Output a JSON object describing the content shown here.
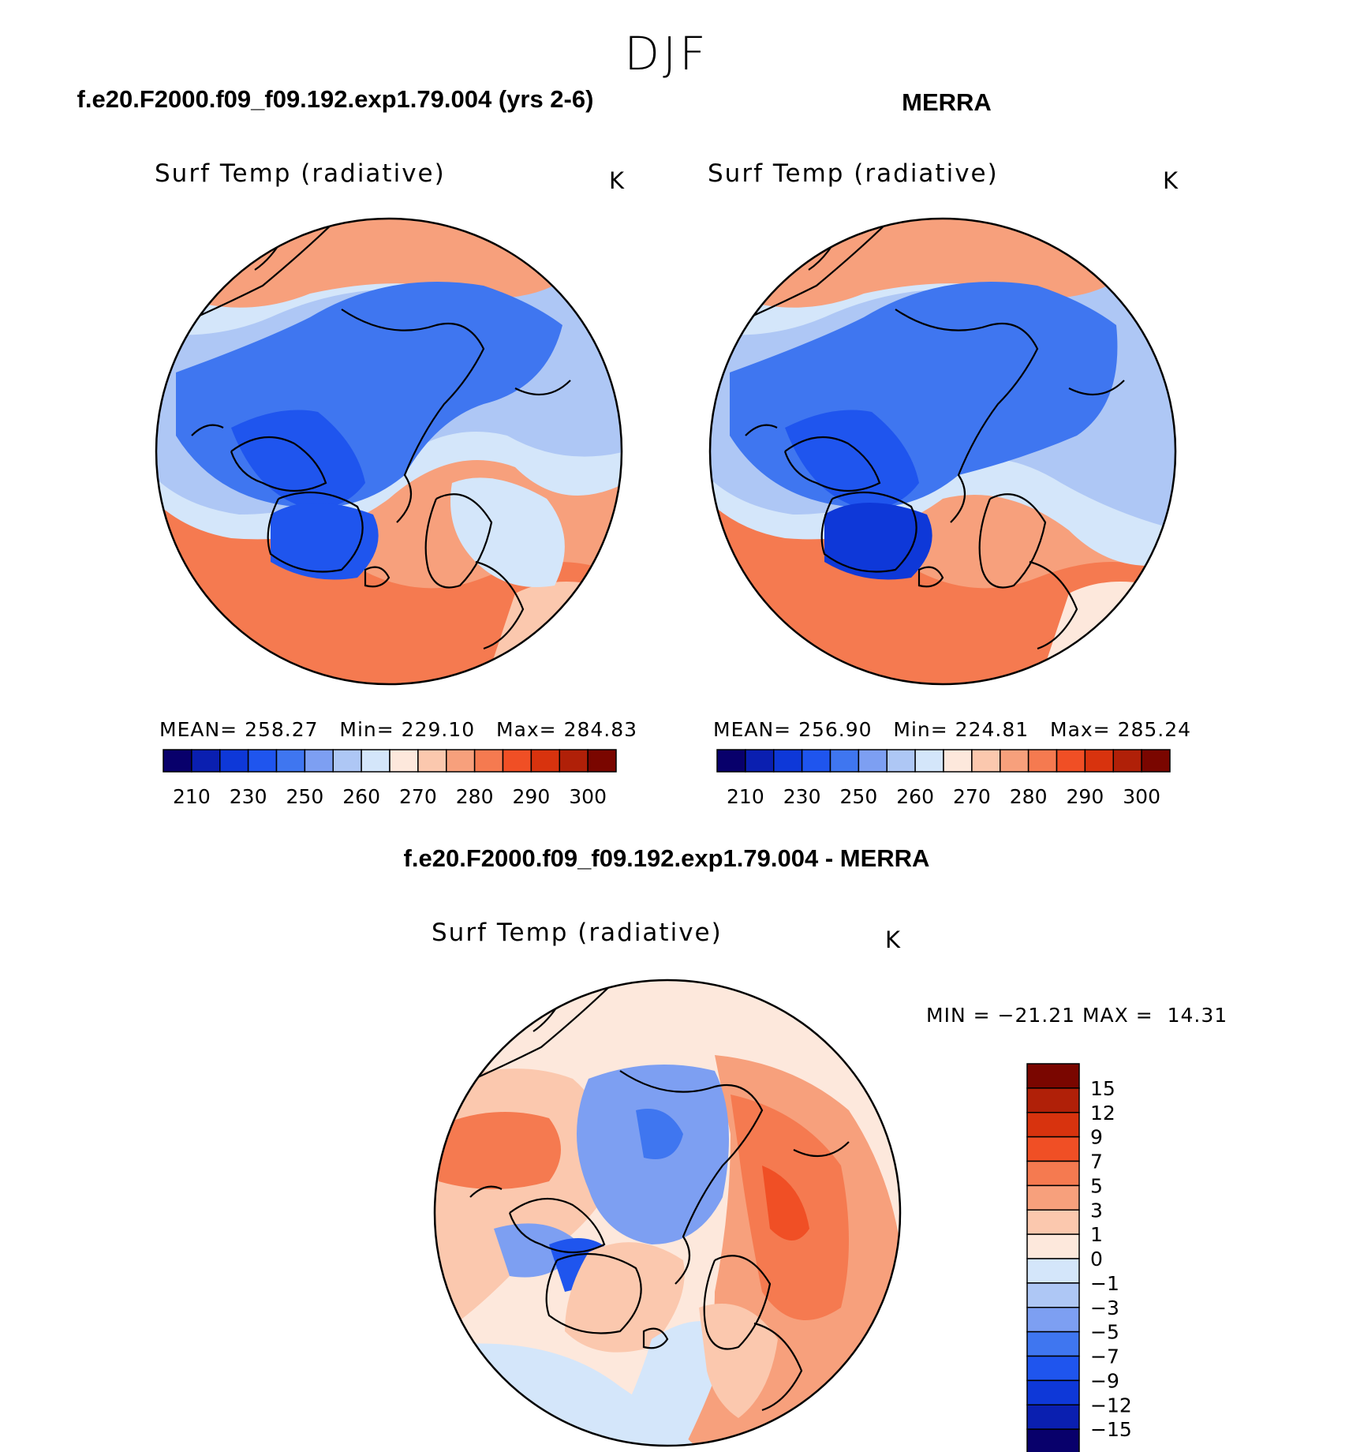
{
  "figure": {
    "season": "DJF"
  },
  "panels": {
    "model": {
      "title": "f.e20.F2000.f09_f09.192.exp1.79.004 (yrs 2-6)",
      "variable": "Surf Temp (radiative)",
      "units": "K",
      "mean_label": "MEAN=",
      "mean_value": "258.27",
      "min_label": "Min=",
      "min_value": "229.10",
      "max_label": "Max=",
      "max_value": "284.83"
    },
    "obs": {
      "title": "MERRA",
      "variable": "Surf Temp (radiative)",
      "units": "K",
      "mean_label": "MEAN=",
      "mean_value": "256.90",
      "min_label": "Min=",
      "min_value": "224.81",
      "max_label": "Max=",
      "max_value": "285.24"
    },
    "diff": {
      "title": "f.e20.F2000.f09_f09.192.exp1.79.004 - MERRA",
      "variable": "Surf Temp (radiative)",
      "units": "K",
      "min_label": "MIN =",
      "min_value": "−21.21",
      "max_label": "MAX =",
      "max_value": "14.31"
    }
  },
  "colorbars": {
    "absolute": {
      "colors": [
        "#08006b",
        "#0a1fb0",
        "#0e38d8",
        "#1f55ee",
        "#3f76f0",
        "#7d9ff2",
        "#aec7f5",
        "#d4e6fa",
        "#fde8dc",
        "#fbc8ae",
        "#f7a07c",
        "#f57a50",
        "#f04f25",
        "#d8330e",
        "#b02008",
        "#7a0600"
      ],
      "ticks": [
        "210",
        "230",
        "250",
        "260",
        "270",
        "280",
        "290",
        "300"
      ]
    },
    "difference": {
      "colors": [
        "#7a0600",
        "#b02008",
        "#d8330e",
        "#f04f25",
        "#f57a50",
        "#f7a07c",
        "#fbc8ae",
        "#fde8dc",
        "#d4e6fa",
        "#aec7f5",
        "#7d9ff2",
        "#3f76f0",
        "#1f55ee",
        "#0e38d8",
        "#0a1fb0",
        "#08006b"
      ],
      "ticks": [
        "15",
        "12",
        "9",
        "7",
        "5",
        "3",
        "1",
        "0",
        "−1",
        "−3",
        "−5",
        "−7",
        "−9",
        "−12",
        "−15"
      ]
    }
  }
}
